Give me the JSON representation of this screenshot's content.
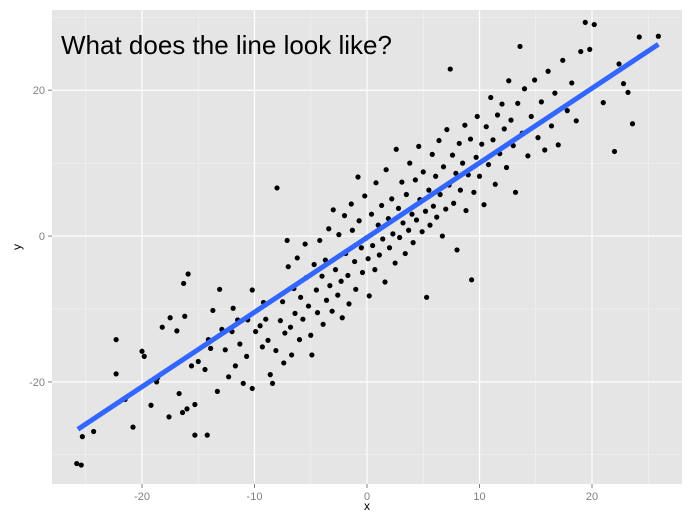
{
  "chart_data": {
    "type": "scatter",
    "title": "What does the line look like?",
    "xlabel": "x",
    "ylabel": "y",
    "xlim": [
      -28,
      28
    ],
    "ylim": [
      -34,
      31
    ],
    "x_ticks": [
      -20,
      -10,
      0,
      10,
      20
    ],
    "y_ticks": [
      -20,
      0,
      20
    ],
    "grid": true,
    "colors": {
      "panel_background": "#e5e5e5",
      "grid_major": "#ffffff",
      "grid_minor": "#f2f2f2",
      "point": "#000000",
      "fit_line": "#3366ff"
    },
    "fit_line": {
      "x": [
        -25.7,
        25.9
      ],
      "y": [
        -26.5,
        26.3
      ]
    },
    "points": [
      [
        -25.8,
        -31.2
      ],
      [
        -25.4,
        -31.4
      ],
      [
        -25.3,
        -27.5
      ],
      [
        -24.3,
        -26.8
      ],
      [
        -22.3,
        -14.2
      ],
      [
        -22.3,
        -18.9
      ],
      [
        -21.5,
        -22.4
      ],
      [
        -20.8,
        -26.2
      ],
      [
        -20.0,
        -15.8
      ],
      [
        -19.8,
        -16.5
      ],
      [
        -19.2,
        -23.2
      ],
      [
        -18.7,
        -20.0
      ],
      [
        -18.6,
        -19.4
      ],
      [
        -18.2,
        -12.5
      ],
      [
        -17.6,
        -24.8
      ],
      [
        -17.5,
        -11.2
      ],
      [
        -16.9,
        -13.0
      ],
      [
        -16.7,
        -21.6
      ],
      [
        -16.4,
        -24.2
      ],
      [
        -16.2,
        -11.0
      ],
      [
        -16.3,
        -6.5
      ],
      [
        -16.0,
        -23.7
      ],
      [
        -15.9,
        -5.2
      ],
      [
        -15.6,
        -17.8
      ],
      [
        -15.3,
        -23.1
      ],
      [
        -15.3,
        -27.3
      ],
      [
        -15.0,
        -17.2
      ],
      [
        -14.4,
        -18.3
      ],
      [
        -14.2,
        -27.3
      ],
      [
        -14.1,
        -14.2
      ],
      [
        -13.9,
        -15.4
      ],
      [
        -13.7,
        -10.2
      ],
      [
        -13.3,
        -21.3
      ],
      [
        -13.1,
        -7.3
      ],
      [
        -12.9,
        -12.8
      ],
      [
        -12.6,
        -15.6
      ],
      [
        -12.3,
        -19.3
      ],
      [
        -12.0,
        -13.1
      ],
      [
        -11.9,
        -9.9
      ],
      [
        -11.7,
        -17.8
      ],
      [
        -11.5,
        -11.5
      ],
      [
        -11.3,
        -14.8
      ],
      [
        -11.0,
        -20.2
      ],
      [
        -10.7,
        -16.5
      ],
      [
        -10.6,
        -11.5
      ],
      [
        -10.2,
        -20.9
      ],
      [
        -10.2,
        -7.4
      ],
      [
        -9.9,
        -13.1
      ],
      [
        -9.5,
        -12.3
      ],
      [
        -9.3,
        -15.2
      ],
      [
        -9.2,
        -9.1
      ],
      [
        -9.0,
        -11.4
      ],
      [
        -8.8,
        -14.3
      ],
      [
        -8.6,
        -19.0
      ],
      [
        -8.4,
        -20.2
      ],
      [
        -8.1,
        -15.7
      ],
      [
        -8.0,
        6.6
      ],
      [
        -7.7,
        -11.6
      ],
      [
        -7.5,
        -9.0
      ],
      [
        -7.4,
        -17.4
      ],
      [
        -7.3,
        -13.3
      ],
      [
        -7.1,
        -0.6
      ],
      [
        -7.0,
        -4.2
      ],
      [
        -6.8,
        -12.5
      ],
      [
        -6.7,
        -16.3
      ],
      [
        -6.5,
        -7.2
      ],
      [
        -6.4,
        -10.6
      ],
      [
        -6.2,
        -3.0
      ],
      [
        -6.0,
        -14.2
      ],
      [
        -5.9,
        -8.4
      ],
      [
        -5.7,
        -11.4
      ],
      [
        -5.5,
        -1.1
      ],
      [
        -5.4,
        -5.7
      ],
      [
        -5.2,
        -9.6
      ],
      [
        -5.0,
        -13.6
      ],
      [
        -4.9,
        -16.3
      ],
      [
        -4.7,
        -3.9
      ],
      [
        -4.5,
        -7.4
      ],
      [
        -4.4,
        -10.5
      ],
      [
        -4.2,
        -0.6
      ],
      [
        -4.0,
        -5.5
      ],
      [
        -3.9,
        -12.1
      ],
      [
        -3.7,
        -3.3
      ],
      [
        -3.6,
        -8.8
      ],
      [
        -3.4,
        1.0
      ],
      [
        -3.3,
        -6.8
      ],
      [
        -3.1,
        -10.3
      ],
      [
        -3.0,
        3.6
      ],
      [
        -2.8,
        -4.6
      ],
      [
        -2.6,
        -8.1
      ],
      [
        -2.5,
        0.2
      ],
      [
        -2.3,
        -6.2
      ],
      [
        -2.2,
        -11.2
      ],
      [
        -2.0,
        2.8
      ],
      [
        -1.9,
        -2.4
      ],
      [
        -1.7,
        -5.4
      ],
      [
        -1.6,
        -9.3
      ],
      [
        -1.4,
        4.4
      ],
      [
        -1.3,
        0.8
      ],
      [
        -1.1,
        -3.5
      ],
      [
        -1.0,
        -7.3
      ],
      [
        -0.8,
        8.1
      ],
      [
        -0.7,
        2.1
      ],
      [
        -0.5,
        -1.6
      ],
      [
        -0.4,
        -5.0
      ],
      [
        -0.2,
        5.5
      ],
      [
        -0.1,
        -0.3
      ],
      [
        0.1,
        -3.1
      ],
      [
        0.2,
        -8.2
      ],
      [
        0.4,
        3.0
      ],
      [
        0.5,
        -1.3
      ],
      [
        0.7,
        -4.6
      ],
      [
        0.8,
        7.3
      ],
      [
        1.0,
        1.5
      ],
      [
        1.1,
        -2.6
      ],
      [
        1.3,
        4.2
      ],
      [
        1.4,
        -0.4
      ],
      [
        1.6,
        -6.3
      ],
      [
        1.7,
        9.1
      ],
      [
        1.9,
        2.4
      ],
      [
        2.0,
        -1.6
      ],
      [
        2.2,
        5.1
      ],
      [
        2.3,
        0.3
      ],
      [
        2.5,
        -3.7
      ],
      [
        2.6,
        11.9
      ],
      [
        2.8,
        3.8
      ],
      [
        2.9,
        -0.2
      ],
      [
        3.1,
        7.4
      ],
      [
        3.2,
        1.8
      ],
      [
        3.4,
        -2.4
      ],
      [
        3.5,
        5.7
      ],
      [
        3.7,
        0.8
      ],
      [
        3.8,
        10.0
      ],
      [
        4.0,
        3.0
      ],
      [
        4.1,
        -0.9
      ],
      [
        4.3,
        7.7
      ],
      [
        4.4,
        2.2
      ],
      [
        4.6,
        12.3
      ],
      [
        4.7,
        5.0
      ],
      [
        4.9,
        0.6
      ],
      [
        5.0,
        8.8
      ],
      [
        5.2,
        3.4
      ],
      [
        5.3,
        -8.4
      ],
      [
        5.5,
        6.3
      ],
      [
        5.6,
        1.5
      ],
      [
        5.8,
        11.2
      ],
      [
        5.9,
        4.1
      ],
      [
        6.1,
        8.2
      ],
      [
        6.2,
        2.6
      ],
      [
        6.4,
        13.1
      ],
      [
        6.5,
        5.7
      ],
      [
        6.7,
        0.0
      ],
      [
        6.8,
        9.5
      ],
      [
        7.0,
        3.7
      ],
      [
        7.1,
        14.6
      ],
      [
        7.3,
        7.0
      ],
      [
        7.4,
        22.9
      ],
      [
        7.6,
        11.1
      ],
      [
        7.7,
        4.5
      ],
      [
        7.9,
        8.6
      ],
      [
        8.0,
        -1.9
      ],
      [
        8.2,
        12.7
      ],
      [
        8.3,
        6.3
      ],
      [
        8.5,
        10.0
      ],
      [
        8.7,
        15.2
      ],
      [
        8.8,
        3.5
      ],
      [
        9.0,
        8.4
      ],
      [
        9.2,
        13.3
      ],
      [
        9.3,
        -6.0
      ],
      [
        9.5,
        6.0
      ],
      [
        9.7,
        10.8
      ],
      [
        9.8,
        16.4
      ],
      [
        10.0,
        8.2
      ],
      [
        10.2,
        12.6
      ],
      [
        10.4,
        4.3
      ],
      [
        10.6,
        15.0
      ],
      [
        10.8,
        9.8
      ],
      [
        11.0,
        19.0
      ],
      [
        11.2,
        13.2
      ],
      [
        11.4,
        7.1
      ],
      [
        11.6,
        16.6
      ],
      [
        11.8,
        11.3
      ],
      [
        12.0,
        18.1
      ],
      [
        12.2,
        14.7
      ],
      [
        12.4,
        9.4
      ],
      [
        12.6,
        21.3
      ],
      [
        12.8,
        15.9
      ],
      [
        13.0,
        12.4
      ],
      [
        13.2,
        6.0
      ],
      [
        13.4,
        18.2
      ],
      [
        13.6,
        26.0
      ],
      [
        13.8,
        14.1
      ],
      [
        14.0,
        20.2
      ],
      [
        14.3,
        11.0
      ],
      [
        14.6,
        16.4
      ],
      [
        14.9,
        21.4
      ],
      [
        15.2,
        13.5
      ],
      [
        15.5,
        18.4
      ],
      [
        15.8,
        11.8
      ],
      [
        16.1,
        22.6
      ],
      [
        16.4,
        15.1
      ],
      [
        16.7,
        19.6
      ],
      [
        17.0,
        12.5
      ],
      [
        17.4,
        24.1
      ],
      [
        17.8,
        17.2
      ],
      [
        18.2,
        21.0
      ],
      [
        18.6,
        15.8
      ],
      [
        19.0,
        25.3
      ],
      [
        19.4,
        29.3
      ],
      [
        19.8,
        25.6
      ],
      [
        20.2,
        29.0
      ],
      [
        21.0,
        18.3
      ],
      [
        22.0,
        11.6
      ],
      [
        22.4,
        23.6
      ],
      [
        22.8,
        20.9
      ],
      [
        23.2,
        19.7
      ],
      [
        23.6,
        15.4
      ],
      [
        24.2,
        27.3
      ],
      [
        25.9,
        27.4
      ]
    ]
  }
}
